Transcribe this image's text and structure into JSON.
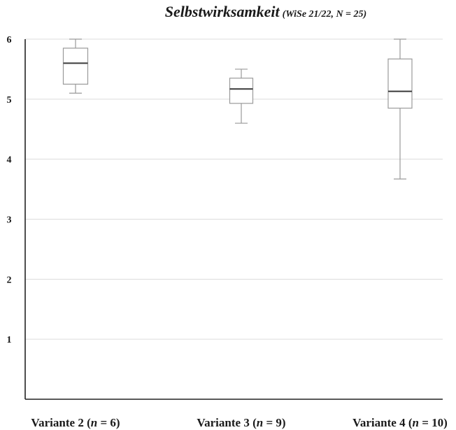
{
  "chart_data": {
    "type": "box",
    "title": "Selbstwirksamkeit",
    "subtitle": "(WiSe 21/22, N = 25)",
    "xlabel": "",
    "ylabel": "",
    "ylim": [
      0,
      6
    ],
    "yticks": [
      "1",
      "2",
      "3",
      "4",
      "5",
      "6"
    ],
    "grid": true,
    "categories": [
      {
        "prefix": "Variante 2 (",
        "n_symbol": "n",
        "suffix": " = 6)"
      },
      {
        "prefix": "Variante 3 (",
        "n_symbol": "n",
        "suffix": " = 9)"
      },
      {
        "prefix": "Variante 4 (",
        "n_symbol": "n",
        "suffix": " = 10)"
      }
    ],
    "boxes": [
      {
        "min": 5.1,
        "q1": 5.25,
        "median": 5.6,
        "q3": 5.85,
        "max": 6.0
      },
      {
        "min": 4.6,
        "q1": 4.93,
        "median": 5.17,
        "q3": 5.35,
        "max": 5.5
      },
      {
        "min": 3.67,
        "q1": 4.85,
        "median": 5.13,
        "q3": 5.67,
        "max": 6.0
      }
    ],
    "colors": {
      "box_stroke": "#9a9a9a",
      "median": "#3a3a3a",
      "grid": "#dcdcdc",
      "axis": "#222222",
      "text": "#1a1a1a"
    }
  }
}
